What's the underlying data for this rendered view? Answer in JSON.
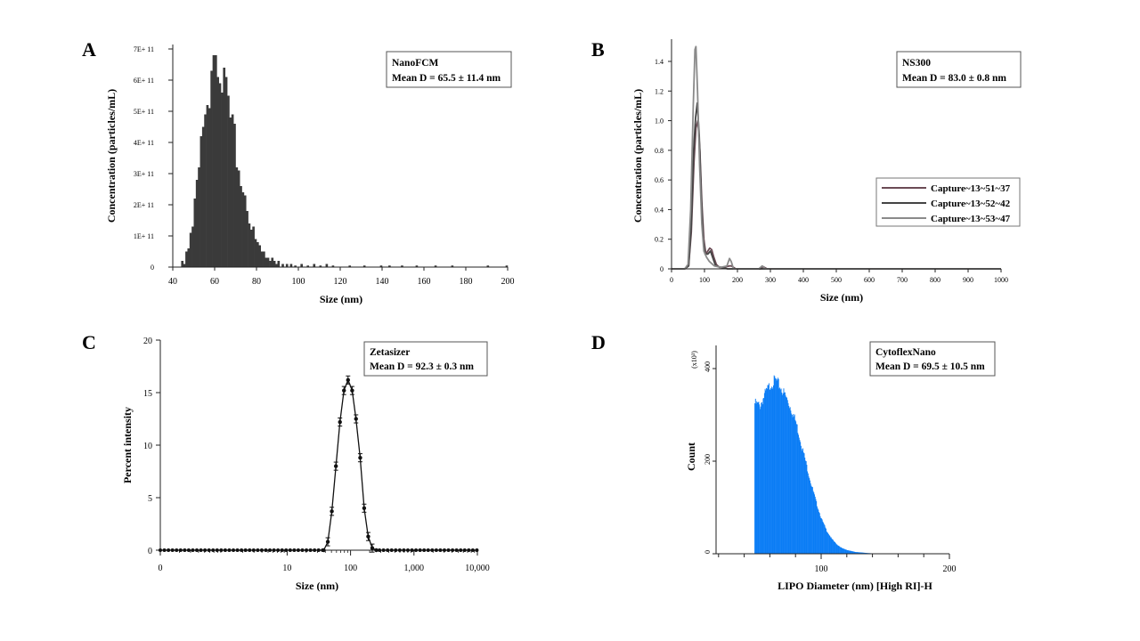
{
  "colors": {
    "bars_a": "#3a3a3a",
    "series_b": [
      "#6b4b55",
      "#444444",
      "#8a8a8a"
    ],
    "line_c": "#111111",
    "bars_d": "#0a7cf5"
  },
  "chart_data": [
    {
      "panel": "A",
      "type": "bar",
      "info_title": "NanoFCM",
      "info_stat": "Mean D = 65.5 ± 11.4 nm",
      "xlabel": "Size (nm)",
      "ylabel": "Concentration (particles/mL)",
      "xlim": [
        40,
        200
      ],
      "ylim": [
        0,
        700000000000.0
      ],
      "xticks": [
        40,
        60,
        80,
        100,
        120,
        140,
        160,
        180,
        200
      ],
      "yticks": [
        {
          "v": 0,
          "label": "0"
        },
        {
          "v": 100000000000.0,
          "label": "1E+ 11"
        },
        {
          "v": 200000000000.0,
          "label": "2E+ 11"
        },
        {
          "v": 300000000000.0,
          "label": "3E+ 11"
        },
        {
          "v": 400000000000.0,
          "label": "4E+ 11"
        },
        {
          "v": 500000000000.0,
          "label": "5E+ 11"
        },
        {
          "v": 600000000000.0,
          "label": "6E+ 11"
        },
        {
          "v": 700000000000.0,
          "label": "7E+ 11"
        }
      ],
      "bin_width": 1,
      "bins": [
        [
          44,
          20000000000.0
        ],
        [
          45,
          10000000000.0
        ],
        [
          46,
          50000000000.0
        ],
        [
          47,
          60000000000.0
        ],
        [
          48,
          110000000000.0
        ],
        [
          49,
          130000000000.0
        ],
        [
          50,
          220000000000.0
        ],
        [
          51,
          280000000000.0
        ],
        [
          52,
          320000000000.0
        ],
        [
          53,
          420000000000.0
        ],
        [
          54,
          450000000000.0
        ],
        [
          55,
          490000000000.0
        ],
        [
          56,
          520000000000.0
        ],
        [
          57,
          510000000000.0
        ],
        [
          58,
          630000000000.0
        ],
        [
          59,
          680000000000.0
        ],
        [
          60,
          680000000000.0
        ],
        [
          61,
          610000000000.0
        ],
        [
          62,
          590000000000.0
        ],
        [
          63,
          560000000000.0
        ],
        [
          64,
          640000000000.0
        ],
        [
          65,
          610000000000.0
        ],
        [
          66,
          550000000000.0
        ],
        [
          67,
          480000000000.0
        ],
        [
          68,
          490000000000.0
        ],
        [
          69,
          460000000000.0
        ],
        [
          70,
          320000000000.0
        ],
        [
          71,
          310000000000.0
        ],
        [
          72,
          260000000000.0
        ],
        [
          73,
          240000000000.0
        ],
        [
          74,
          230000000000.0
        ],
        [
          75,
          180000000000.0
        ],
        [
          76,
          140000000000.0
        ],
        [
          77,
          120000000000.0
        ],
        [
          78,
          130000000000.0
        ],
        [
          79,
          90000000000.0
        ],
        [
          80,
          80000000000.0
        ],
        [
          81,
          70000000000.0
        ],
        [
          82,
          50000000000.0
        ],
        [
          83,
          50000000000.0
        ],
        [
          84,
          30000000000.0
        ],
        [
          85,
          30000000000.0
        ],
        [
          86,
          20000000000.0
        ],
        [
          87,
          30000000000.0
        ],
        [
          88,
          20000000000.0
        ],
        [
          89,
          10000000000.0
        ],
        [
          90,
          20000000000.0
        ],
        [
          92,
          10000000000.0
        ],
        [
          94,
          10000000000.0
        ],
        [
          96,
          10000000000.0
        ],
        [
          98,
          5000000000.0
        ],
        [
          101,
          10000000000.0
        ],
        [
          104,
          5000000000.0
        ],
        [
          107,
          10000000000.0
        ],
        [
          110,
          5000000000.0
        ],
        [
          113,
          10000000000.0
        ],
        [
          116,
          5000000000.0
        ],
        [
          124,
          5000000000.0
        ],
        [
          131,
          5000000000.0
        ],
        [
          139,
          5000000000.0
        ],
        [
          143,
          5000000000.0
        ],
        [
          149,
          5000000000.0
        ],
        [
          156,
          5000000000.0
        ],
        [
          165,
          5000000000.0
        ],
        [
          173,
          5000000000.0
        ],
        [
          190,
          5000000000.0
        ],
        [
          199,
          5000000000.0
        ]
      ]
    },
    {
      "panel": "B",
      "type": "line",
      "info_title": "NS300",
      "info_stat": "Mean D = 83.0 ± 0.8 nm",
      "xlabel": "Size (nm)",
      "ylabel": "Concentration (particles/mL)",
      "xlim": [
        0,
        1000
      ],
      "ylim": [
        0,
        1.55
      ],
      "xticks": [
        0,
        100,
        200,
        300,
        400,
        500,
        600,
        700,
        800,
        900,
        1000
      ],
      "yticks": [
        {
          "v": 0,
          "label": "0"
        },
        {
          "v": 0.2,
          "label": "0.2"
        },
        {
          "v": 0.4,
          "label": "0.4"
        },
        {
          "v": 0.6,
          "label": "0.6"
        },
        {
          "v": 0.8,
          "label": "0.8"
        },
        {
          "v": 1.0,
          "label": "1.0"
        },
        {
          "v": 1.2,
          "label": "1.2"
        },
        {
          "v": 1.4,
          "label": "1.4"
        }
      ],
      "legend_position": "right",
      "series": [
        {
          "name": "Capture~13~51~37",
          "points": [
            [
              0,
              0
            ],
            [
              40,
              0
            ],
            [
              52,
              0.02
            ],
            [
              60,
              0.25
            ],
            [
              68,
              0.72
            ],
            [
              74,
              0.95
            ],
            [
              80,
              1.0
            ],
            [
              86,
              0.8
            ],
            [
              92,
              0.45
            ],
            [
              98,
              0.2
            ],
            [
              104,
              0.1
            ],
            [
              110,
              0.12
            ],
            [
              116,
              0.14
            ],
            [
              122,
              0.13
            ],
            [
              128,
              0.08
            ],
            [
              136,
              0.03
            ],
            [
              145,
              0.01
            ],
            [
              160,
              0.01
            ],
            [
              175,
              0.02
            ],
            [
              182,
              0.02
            ],
            [
              195,
              0
            ],
            [
              270,
              0
            ],
            [
              278,
              0.015
            ],
            [
              290,
              0
            ],
            [
              1000,
              0
            ]
          ]
        },
        {
          "name": "Capture~13~52~42",
          "points": [
            [
              0,
              0
            ],
            [
              40,
              0
            ],
            [
              52,
              0.02
            ],
            [
              60,
              0.3
            ],
            [
              67,
              0.8
            ],
            [
              73,
              1.02
            ],
            [
              78,
              1.12
            ],
            [
              84,
              0.9
            ],
            [
              90,
              0.5
            ],
            [
              96,
              0.2
            ],
            [
              102,
              0.1
            ],
            [
              110,
              0.1
            ],
            [
              118,
              0.12
            ],
            [
              126,
              0.07
            ],
            [
              134,
              0.02
            ],
            [
              150,
              0.01
            ],
            [
              170,
              0
            ],
            [
              1000,
              0
            ]
          ]
        },
        {
          "name": "Capture~13~53~47",
          "points": [
            [
              0,
              0
            ],
            [
              40,
              0
            ],
            [
              50,
              0.03
            ],
            [
              58,
              0.4
            ],
            [
              66,
              1.1
            ],
            [
              71,
              1.48
            ],
            [
              74,
              1.5
            ],
            [
              79,
              1.2
            ],
            [
              85,
              0.7
            ],
            [
              92,
              0.3
            ],
            [
              98,
              0.12
            ],
            [
              106,
              0.08
            ],
            [
              115,
              0.05
            ],
            [
              130,
              0.02
            ],
            [
              150,
              0.01
            ],
            [
              168,
              0.02
            ],
            [
              176,
              0.07
            ],
            [
              181,
              0.05
            ],
            [
              188,
              0
            ],
            [
              265,
              0
            ],
            [
              275,
              0.02
            ],
            [
              285,
              0
            ],
            [
              1000,
              0
            ]
          ]
        }
      ]
    },
    {
      "panel": "C",
      "type": "line",
      "info_title": "Zetasizer",
      "info_stat": "Mean D = 92.3 ± 0.3 nm",
      "xlabel": "Size (nm)",
      "ylabel": "Percent intensity",
      "xscale": "log",
      "xlim": [
        0.1,
        10000
      ],
      "ylim": [
        0,
        20
      ],
      "xticks": [
        {
          "v": 0.1,
          "label": "0"
        },
        {
          "v": 10,
          "label": "10"
        },
        {
          "v": 100,
          "label": "100"
        },
        {
          "v": 1000,
          "label": "1,000"
        },
        {
          "v": 10000,
          "label": "10,000"
        }
      ],
      "yticks": [
        {
          "v": 0,
          "label": "0"
        },
        {
          "v": 5,
          "label": "5"
        },
        {
          "v": 10,
          "label": "10"
        },
        {
          "v": 15,
          "label": "15"
        },
        {
          "v": 20,
          "label": "20"
        }
      ],
      "peak_points": [
        [
          37.8,
          0
        ],
        [
          43.8,
          0.8
        ],
        [
          50.7,
          3.7
        ],
        [
          58.8,
          8.0
        ],
        [
          68.1,
          12.2
        ],
        [
          78.8,
          15.2
        ],
        [
          91.3,
          16.2
        ],
        [
          106,
          15.2
        ],
        [
          122,
          12.5
        ],
        [
          142,
          8.8
        ],
        [
          164,
          4.0
        ],
        [
          190,
          1.3
        ],
        [
          220,
          0.2
        ],
        [
          255,
          0
        ]
      ],
      "error": 0.3,
      "marker_spacing_decades": 0.064
    },
    {
      "panel": "D",
      "type": "bar",
      "info_title": "CytoflexNano",
      "info_stat": "Mean D = 69.5 ± 10.5 nm",
      "xlabel": "LIPO Diameter (nm) [High RI]-H",
      "ylabel": "Count",
      "y_multiplier_label": "(x10³)",
      "xlim": [
        0,
        200
      ],
      "ylim": [
        0,
        450
      ],
      "xticks": [
        {
          "v": 100,
          "label": "100"
        },
        {
          "v": 200,
          "label": "200"
        }
      ],
      "xminor": [
        20,
        40,
        60,
        80,
        120,
        140,
        160,
        180
      ],
      "yticks": [
        {
          "v": 0,
          "label": "0"
        },
        {
          "v": 200,
          "label": "200"
        },
        {
          "v": 400,
          "label": "400"
        }
      ],
      "profile": [
        [
          48,
          325
        ],
        [
          52,
          320
        ],
        [
          56,
          345
        ],
        [
          60,
          365
        ],
        [
          64,
          375
        ],
        [
          68,
          360
        ],
        [
          72,
          340
        ],
        [
          76,
          315
        ],
        [
          80,
          285
        ],
        [
          84,
          240
        ],
        [
          88,
          195
        ],
        [
          92,
          150
        ],
        [
          96,
          110
        ],
        [
          100,
          75
        ],
        [
          104,
          50
        ],
        [
          108,
          32
        ],
        [
          112,
          20
        ],
        [
          116,
          12
        ],
        [
          120,
          8
        ],
        [
          126,
          4
        ],
        [
          134,
          2
        ],
        [
          143,
          0
        ]
      ]
    }
  ]
}
